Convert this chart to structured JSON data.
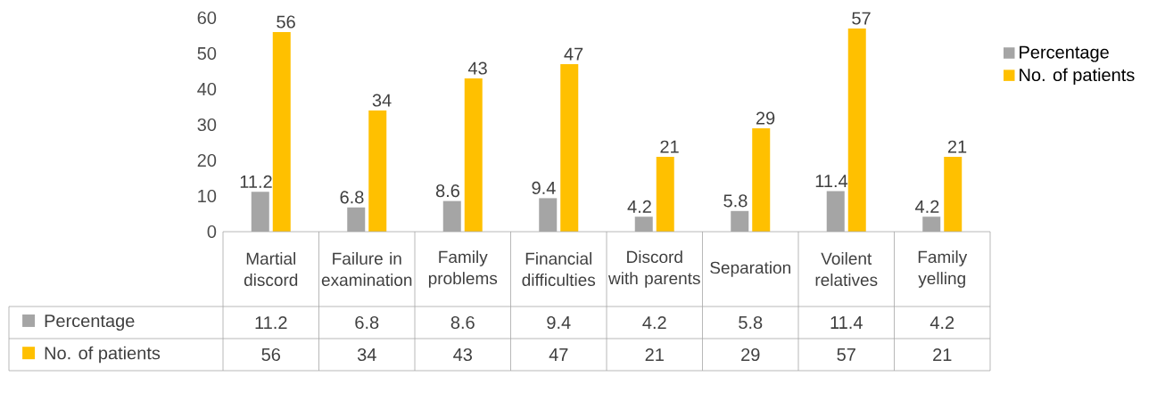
{
  "chart_data": {
    "type": "bar",
    "categories": [
      "Martial discord",
      "Failure in examination",
      "Family problems",
      "Financial difficulties",
      "Discord with parents",
      "Separation",
      "Voilent relatives",
      "Family yelling"
    ],
    "series": [
      {
        "name": "Percentage",
        "color": "#a5a5a5",
        "values": [
          11.2,
          6.8,
          8.6,
          9.4,
          4.2,
          5.8,
          11.4,
          4.2
        ],
        "value_labels": [
          "11.2",
          "6.8",
          "8.6",
          "9.4",
          "4.2",
          "5.8",
          "11.4",
          "4.2"
        ]
      },
      {
        "name": "No. of patients",
        "color": "#ffc000",
        "values": [
          56,
          34,
          43,
          47,
          21,
          29,
          57,
          21
        ],
        "value_labels": [
          "56",
          "34",
          "43",
          "47",
          "21",
          "29",
          "57",
          "21"
        ]
      }
    ],
    "ylim": [
      0,
      60
    ],
    "yticks": [
      0,
      10,
      20,
      30,
      40,
      50,
      60
    ],
    "data_labels": true,
    "legend": "right"
  }
}
